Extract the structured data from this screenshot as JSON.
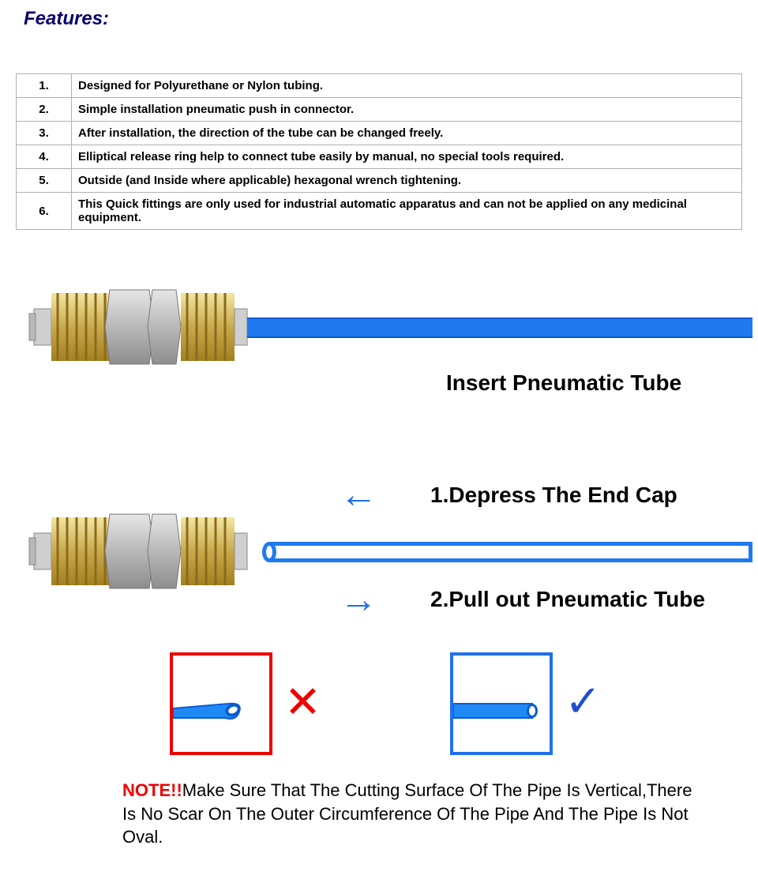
{
  "heading": "Features:",
  "features": [
    {
      "n": "1.",
      "text": "Designed for Polyurethane or Nylon tubing."
    },
    {
      "n": "2.",
      "text": "Simple installation pneumatic push in connector."
    },
    {
      "n": "3.",
      "text": "After installation, the direction of the tube can be changed freely."
    },
    {
      "n": "4.",
      "text": "Elliptical release ring help to connect tube easily by manual, no special tools required."
    },
    {
      "n": "5.",
      "text": "Outside (and Inside where applicable) hexagonal wrench tightening."
    },
    {
      "n": "6.",
      "text": "This Quick fittings are only used for industrial automatic apparatus and can not be applied on any medicinal equipment."
    }
  ],
  "labels": {
    "insert": "Insert Pneumatic Tube",
    "step1": "1.Depress The End Cap",
    "step2": "2.Pull out Pneumatic Tube"
  },
  "note_label": "NOTE!!",
  "note_text": "Make Sure That The Cutting Surface Of The Pipe Is Vertical,There Is No Scar On The Outer Circumference Of The Pipe And The Pipe Is Not Oval.",
  "colors": {
    "heading": "#060270",
    "tube": "#1f7af0",
    "arrow": "#1f6ff0",
    "red": "#ee0000",
    "blue_box": "#1f6ff0",
    "brass1": "#c9a94b",
    "brass2": "#e6d07a",
    "steel1": "#bfbfbf",
    "steel2": "#9a9a9a",
    "collar": "#d0d0d0"
  },
  "marks": {
    "cross": "✕",
    "check": "✓"
  },
  "arrows": {
    "left": "←",
    "right": "→"
  }
}
